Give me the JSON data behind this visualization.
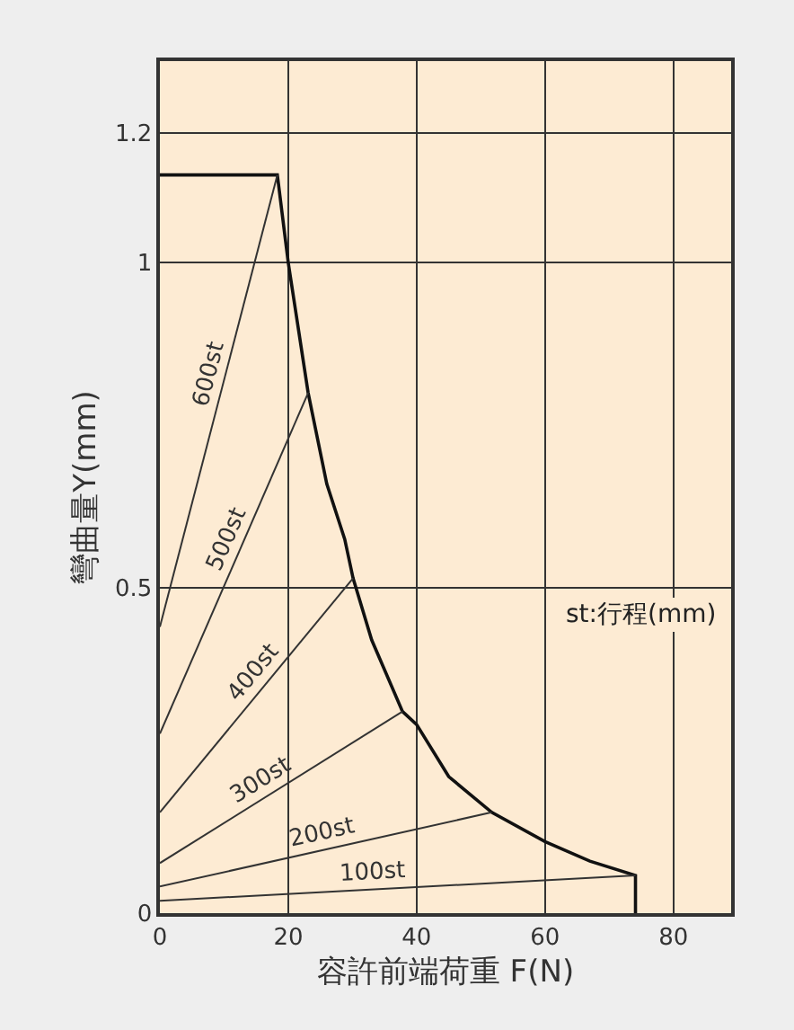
{
  "chart_data": {
    "type": "line",
    "xlabel": "容許前端荷重 F(N)",
    "ylabel": "彎曲量Y(mm)",
    "xlim": [
      0,
      89
    ],
    "ylim": [
      0,
      1.31
    ],
    "xticks": [
      0,
      20,
      40,
      60,
      80
    ],
    "yticks": [
      0,
      0.5,
      1,
      1.2
    ],
    "grid": true,
    "legend": false,
    "marker": "none",
    "line_style": "solid",
    "annotations": [
      "st:行程(mm)"
    ],
    "series": [
      {
        "color": "#111111",
        "x": [
          0,
          18.3,
          20,
          23.1,
          26,
          28.8,
          30.1,
          33,
          37.8,
          40,
          45,
          51.7,
          60,
          67,
          74.1,
          74.1
        ],
        "values": [
          1.135,
          1.135,
          1.0,
          0.8,
          0.66,
          0.575,
          0.515,
          0.42,
          0.31,
          0.29,
          0.21,
          0.155,
          0.11,
          0.08,
          0.058,
          0
        ]
      },
      {
        "name": "600st",
        "color": "#333333",
        "x": [
          0,
          18.3
        ],
        "values": [
          0.44,
          1.135
        ]
      },
      {
        "name": "500st",
        "color": "#333333",
        "x": [
          0,
          23.1
        ],
        "values": [
          0.276,
          0.8
        ]
      },
      {
        "name": "400st",
        "color": "#333333",
        "x": [
          0,
          30.1
        ],
        "values": [
          0.155,
          0.515
        ]
      },
      {
        "name": "300st",
        "color": "#333333",
        "x": [
          0,
          37.8
        ],
        "values": [
          0.077,
          0.31
        ]
      },
      {
        "name": "200st",
        "color": "#333333",
        "x": [
          0,
          51.7
        ],
        "values": [
          0.041,
          0.155
        ]
      },
      {
        "name": "100st",
        "color": "#333333",
        "x": [
          0,
          74.1
        ],
        "values": [
          0.019,
          0.058
        ]
      }
    ]
  }
}
